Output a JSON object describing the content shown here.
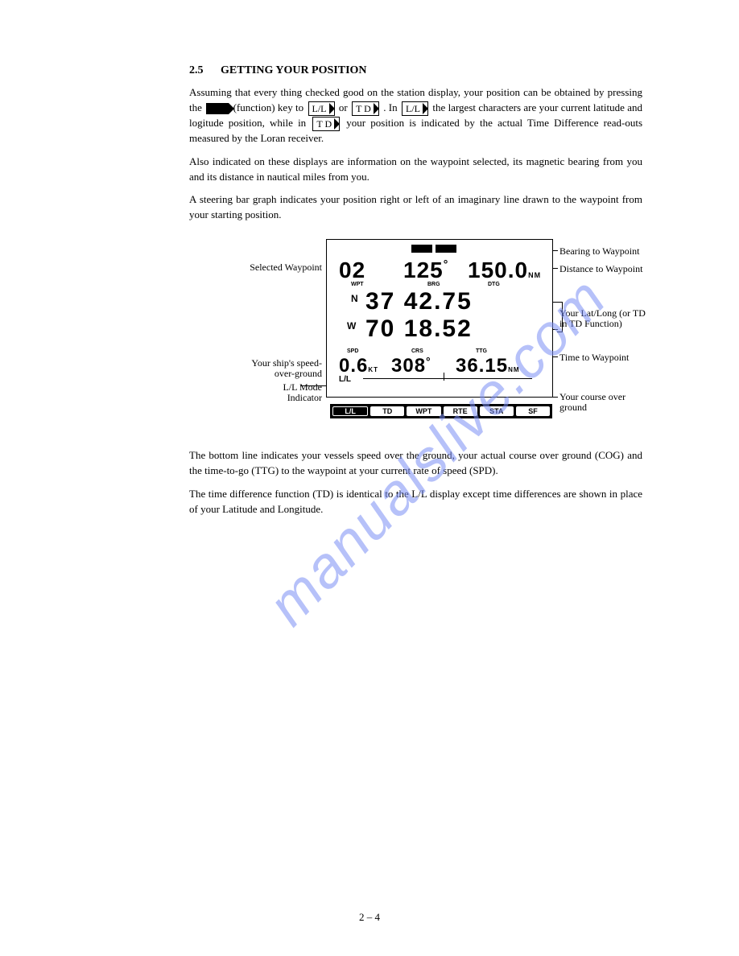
{
  "section": {
    "number": "2.5",
    "title": "GETTING YOUR POSITION"
  },
  "para1_a": "Assuming that every thing checked good on the station display, your position can be obtained by pressing the ",
  "para1_b": " (function) key to ",
  "para1_c": " or ",
  "para1_d": " . In ",
  "para1_e": " the largest characters are your current latitude and logitude position, while in ",
  "para1_f": " your position is indicated by the actual Time Difference read-outs measured by the Loran receiver.",
  "key_ll": "L/L",
  "key_td": "T D",
  "para2": "Also indicated on these displays are information on the waypoint selected, its magnetic bearing from you and its distance in nautical miles from you.",
  "para3": "A steering bar graph indicates your position right or left of an imaginary line drawn to the waypoint from your starting position.",
  "diagram": {
    "callouts": {
      "selected_waypoint": "Selected Waypoint",
      "speed": "Your ship's speed-\nover-ground",
      "ll_mode": "L/L Mode\nIndicator",
      "bearing": "Bearing to Waypoint",
      "distance": "Distance to Waypoint",
      "latlong": "Your Lat/Long (or TD\nin TD Function)",
      "ttg": "Time to Waypoint",
      "cog": "Your course over\nground"
    },
    "display": {
      "wpt": "02",
      "wpt_lbl": "WPT",
      "brg": "125",
      "brg_lbl": "BRG",
      "dtg": "150.0",
      "dtg_unit": "NM",
      "dtg_lbl": "DTG",
      "n": "N",
      "lat": "37 42.75",
      "w": "W",
      "lon": "70 18.52",
      "spd_lbl": "SPD",
      "spd": "0.6",
      "spd_unit": "KT",
      "crs_lbl": "CRS",
      "crs": "308",
      "ttg_lbl": "TTG",
      "ttg": "36.15",
      "ttg_unit": "NM",
      "ll": "L/L"
    },
    "buttons": [
      "L/L",
      "TD",
      "WPT",
      "RTE",
      "STA",
      "SF"
    ]
  },
  "para4": "The bottom line indicates your vessels speed over the ground, your actual course over ground (COG) and the time-to-go (TTG) to the waypoint at your current rate of speed (SPD).",
  "para5": "The time difference function (TD) is identical to the L/L display except time differences are shown in place of your Latitude and Longitude.",
  "watermark": "manualslive.com",
  "page_number": "2 – 4"
}
